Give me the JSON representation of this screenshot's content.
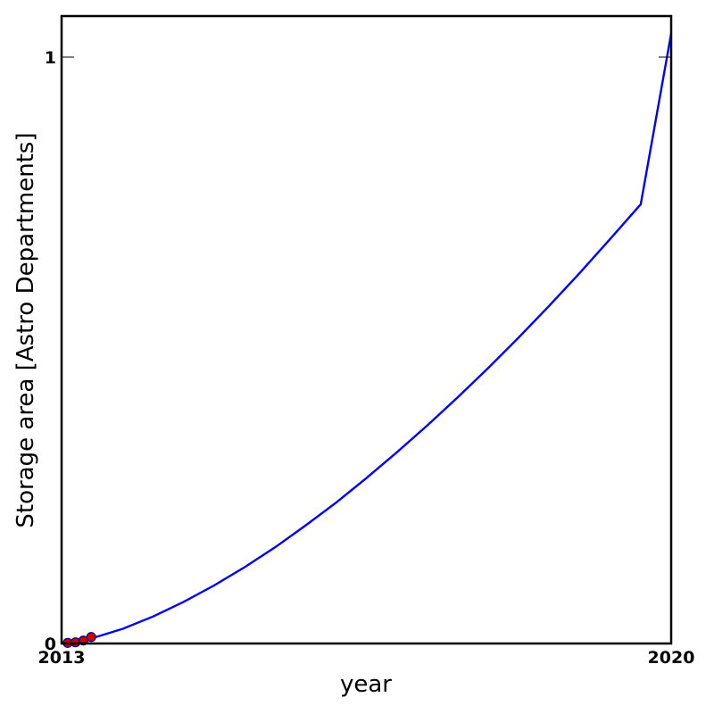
{
  "chart_data": {
    "type": "line",
    "xlabel": "year",
    "ylabel": "Storage area [Astro Departments]",
    "xlim": [
      2013,
      2020
    ],
    "ylim": [
      0,
      1.07
    ],
    "x_ticks": [
      {
        "value": 2013,
        "label": "2013"
      },
      {
        "value": 2020,
        "label": "2020"
      }
    ],
    "y_ticks": [
      {
        "value": 0,
        "label": "0"
      },
      {
        "value": 1,
        "label": "1"
      }
    ],
    "grid": false,
    "series": [
      {
        "kind": "line",
        "color": "#0000ff",
        "x": [
          2013.0,
          2013.35,
          2013.7,
          2014.05,
          2014.4,
          2014.75,
          2015.1,
          2015.45,
          2015.8,
          2016.15,
          2016.5,
          2016.85,
          2017.2,
          2017.55,
          2017.9,
          2018.25,
          2018.6,
          2018.95,
          2019.3,
          2019.65,
          2020.0
        ],
        "y": [
          0.0,
          0.009,
          0.025,
          0.046,
          0.071,
          0.099,
          0.13,
          0.164,
          0.201,
          0.24,
          0.282,
          0.326,
          0.372,
          0.42,
          0.47,
          0.522,
          0.576,
          0.632,
          0.69,
          0.749,
          1.04
        ]
      },
      {
        "kind": "scatter",
        "color": "#cc0000",
        "edge_color": "#000080",
        "x": [
          2013.07,
          2013.16,
          2013.25,
          2013.34
        ],
        "y": [
          0.001,
          0.002,
          0.005,
          0.011
        ]
      }
    ]
  }
}
